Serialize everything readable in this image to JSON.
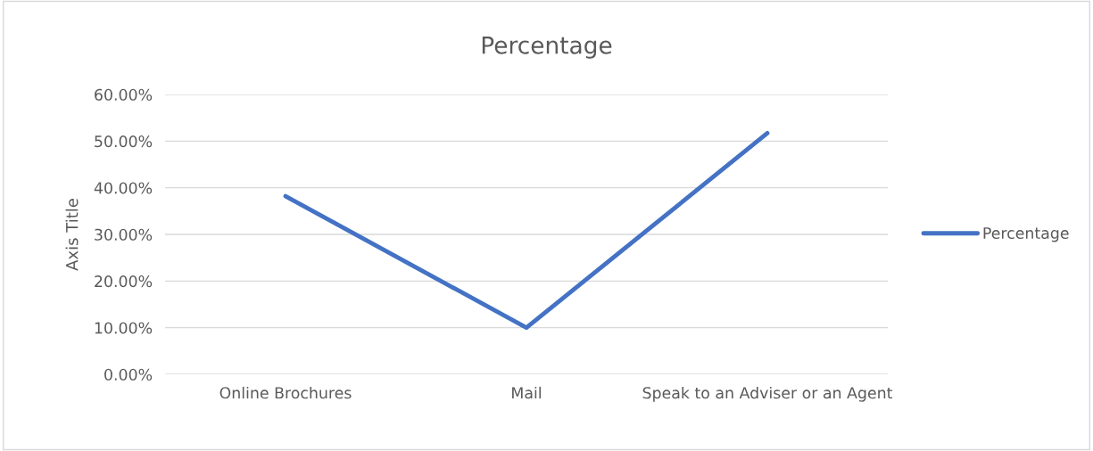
{
  "chart_data": {
    "type": "line",
    "title": "Percentage",
    "ylabel": "Axis Title",
    "categories": [
      "Online Brochures",
      "Mail",
      "Speak to an Adviser or an Agent"
    ],
    "series": [
      {
        "name": "Percentage",
        "color": "#4472c4",
        "values": [
          38.2,
          10.0,
          51.7
        ]
      }
    ],
    "ylim": [
      0,
      60
    ],
    "yticks": [
      {
        "value": 0,
        "label": "0.00%"
      },
      {
        "value": 10,
        "label": "10.00%"
      },
      {
        "value": 20,
        "label": "20.00%"
      },
      {
        "value": 30,
        "label": "30.00%"
      },
      {
        "value": 40,
        "label": "40.00%"
      },
      {
        "value": 50,
        "label": "50.00%"
      },
      {
        "value": 60,
        "label": "60.00%"
      }
    ],
    "grid": "y",
    "legend": "right",
    "marker": "none",
    "line_style": "solid"
  }
}
